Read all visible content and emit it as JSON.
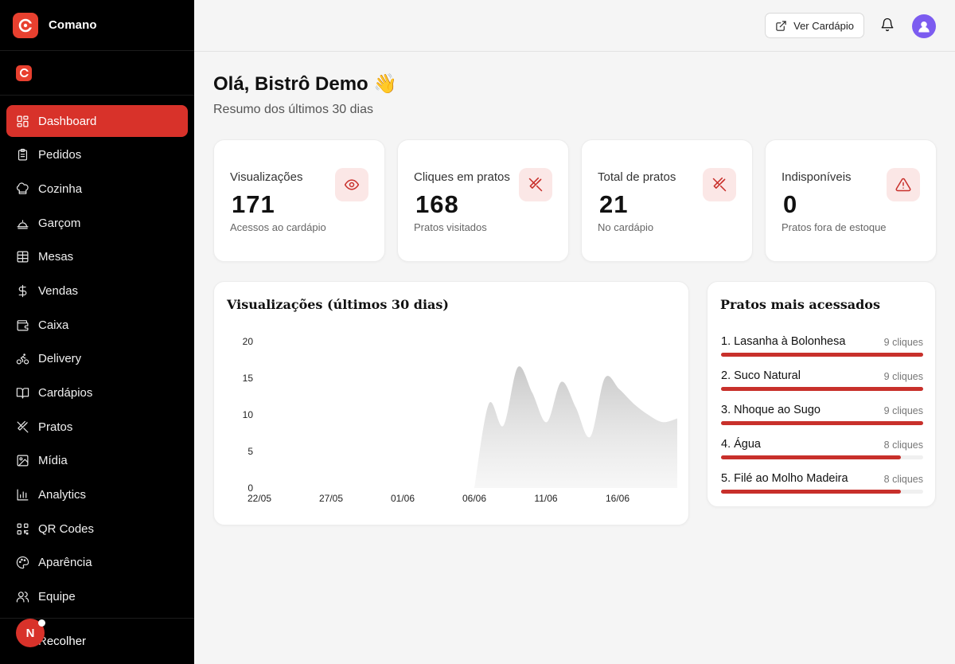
{
  "app": {
    "name": "Comano",
    "brand_color": "#e8402f",
    "accent": "#d8322a"
  },
  "sidebar": {
    "items": [
      {
        "label": "Dashboard",
        "icon": "dashboard-icon",
        "active": true
      },
      {
        "label": "Pedidos",
        "icon": "clipboard-icon"
      },
      {
        "label": "Cozinha",
        "icon": "chef-hat-icon"
      },
      {
        "label": "Garçom",
        "icon": "cloche-icon"
      },
      {
        "label": "Mesas",
        "icon": "table-grid-icon"
      },
      {
        "label": "Vendas",
        "icon": "dollar-icon"
      },
      {
        "label": "Caixa",
        "icon": "wallet-icon"
      },
      {
        "label": "Delivery",
        "icon": "bike-icon"
      },
      {
        "label": "Cardápios",
        "icon": "book-icon"
      },
      {
        "label": "Pratos",
        "icon": "utensils-icon"
      },
      {
        "label": "Mídia",
        "icon": "image-icon"
      },
      {
        "label": "Analytics",
        "icon": "bar-chart-icon"
      },
      {
        "label": "QR Codes",
        "icon": "qr-code-icon"
      },
      {
        "label": "Aparência",
        "icon": "palette-icon"
      },
      {
        "label": "Equipe",
        "icon": "users-icon"
      }
    ],
    "collapse_label": "Recolher",
    "user_initial": "N"
  },
  "header": {
    "menu_button": "Ver Cardápio"
  },
  "page": {
    "greeting": "Olá, Bistrô Demo",
    "greeting_emoji": "👋",
    "subtitle": "Resumo dos últimos 30 dias"
  },
  "stats": [
    {
      "label": "Visualizações",
      "value": "171",
      "note": "Acessos ao cardápio",
      "icon": "eye-icon"
    },
    {
      "label": "Cliques em pratos",
      "value": "168",
      "note": "Pratos visitados",
      "icon": "utensils-crossed-icon"
    },
    {
      "label": "Total de pratos",
      "value": "21",
      "note": "No cardápio",
      "icon": "utensils-crossed-icon"
    },
    {
      "label": "Indisponíveis",
      "value": "0",
      "note": "Pratos fora de estoque",
      "icon": "alert-triangle-icon"
    }
  ],
  "views_chart": {
    "title": "Visualizações (últimos 30 dias)"
  },
  "chart_data": {
    "type": "area",
    "title": "Visualizações (últimos 30 dias)",
    "x_ticks": [
      "22/05",
      "27/05",
      "01/06",
      "06/06",
      "11/06",
      "16/06"
    ],
    "y_ticks": [
      0,
      5,
      10,
      15,
      20
    ],
    "ylim": [
      0,
      20
    ],
    "x": [
      "06/06",
      "07/06",
      "08/06",
      "09/06",
      "10/06",
      "11/06",
      "12/06",
      "13/06",
      "14/06",
      "15/06",
      "16/06",
      "17/06",
      "18/06",
      "19/06",
      "20/06"
    ],
    "values": [
      0,
      11.5,
      8.5,
      16.5,
      13,
      9,
      14.5,
      11,
      7,
      15,
      13.5,
      11.5,
      10,
      9,
      9.5
    ],
    "color": "#cfcfcf",
    "grid": false
  },
  "top_dishes": {
    "title": "Pratos mais acessados",
    "items": [
      {
        "name": "1. Lasanha à Bolonhesa",
        "clicks": "9 cliques",
        "value": 9
      },
      {
        "name": "2. Suco Natural",
        "clicks": "9 cliques",
        "value": 9
      },
      {
        "name": "3. Nhoque ao Sugo",
        "clicks": "9 cliques",
        "value": 9
      },
      {
        "name": "4. Água",
        "clicks": "8 cliques",
        "value": 8
      },
      {
        "name": "5. Filé ao Molho Madeira",
        "clicks": "8 cliques",
        "value": 8
      }
    ],
    "max": 9
  }
}
